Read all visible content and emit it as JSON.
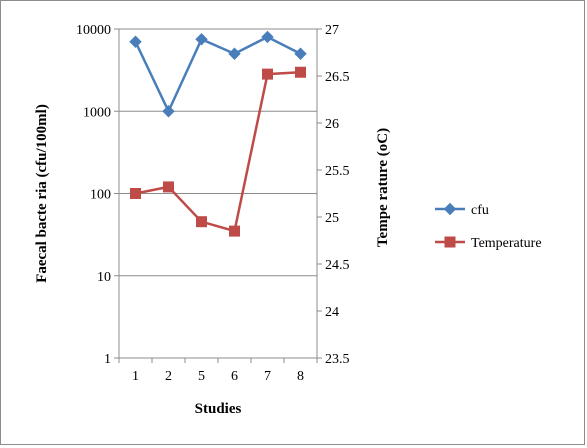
{
  "chart_data": {
    "type": "line",
    "title": "",
    "xlabel": "Studies",
    "ylabel_left": "Faecal bacte ria (cfu/100ml)",
    "ylabel_right": "Tempe rature (oC)",
    "categories": [
      "1",
      "2",
      "5",
      "6",
      "7",
      "8"
    ],
    "y_left": {
      "scale": "log",
      "range": [
        1,
        10000
      ],
      "ticks": [
        1,
        10,
        100,
        1000,
        10000
      ],
      "tick_labels": [
        "1",
        "10",
        "100",
        "1000",
        "10000"
      ]
    },
    "y_right": {
      "scale": "linear",
      "range": [
        23.5,
        27
      ],
      "ticks": [
        23.5,
        24,
        24.5,
        25,
        25.5,
        26,
        26.5,
        27
      ],
      "tick_labels": [
        "23.5",
        "24",
        "24.5",
        "25",
        "25.5",
        "26",
        "26.5",
        "27"
      ]
    },
    "series": [
      {
        "name": "cfu",
        "axis": "left",
        "marker": "diamond",
        "color": "#4a7ebb",
        "values": [
          7000,
          1000,
          7500,
          5000,
          8000,
          5000
        ]
      },
      {
        "name": "Temperature",
        "axis": "right",
        "marker": "square",
        "color": "#be4b48",
        "values": [
          25.25,
          25.32,
          24.95,
          24.85,
          26.52,
          26.54
        ]
      }
    ],
    "grid": true,
    "legend_position": "right"
  }
}
